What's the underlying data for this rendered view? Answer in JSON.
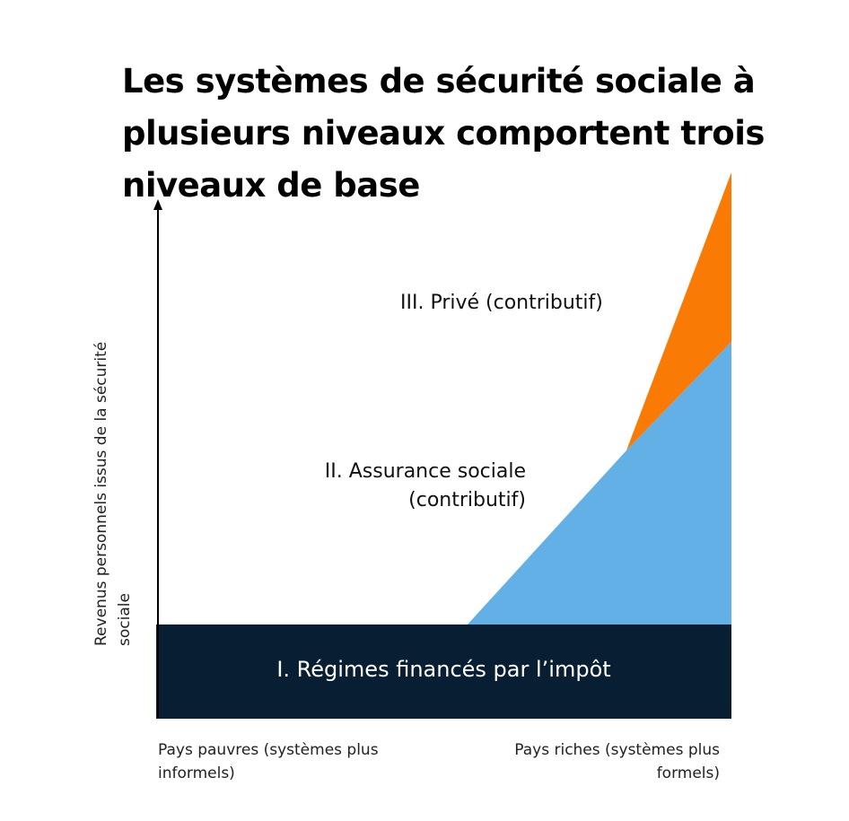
{
  "title": "Les systèmes de sécurité sociale à plusieurs niveaux comportent trois niveaux de base",
  "y_axis_label": "Revenus personnels issus de la sécurité sociale",
  "x_axis": {
    "left_label": "Pays pauvres (systèmes plus informels)",
    "right_label": "Pays riches (systèmes plus formels)"
  },
  "tiers": [
    {
      "label": "I. Régimes financés par l’impôt",
      "color": "#071e33"
    },
    {
      "label": "II. Assurance sociale (contributif)",
      "color": "#62b0e6"
    },
    {
      "label": "III. Privé (contributif)",
      "color": "#f97b06"
    }
  ]
}
